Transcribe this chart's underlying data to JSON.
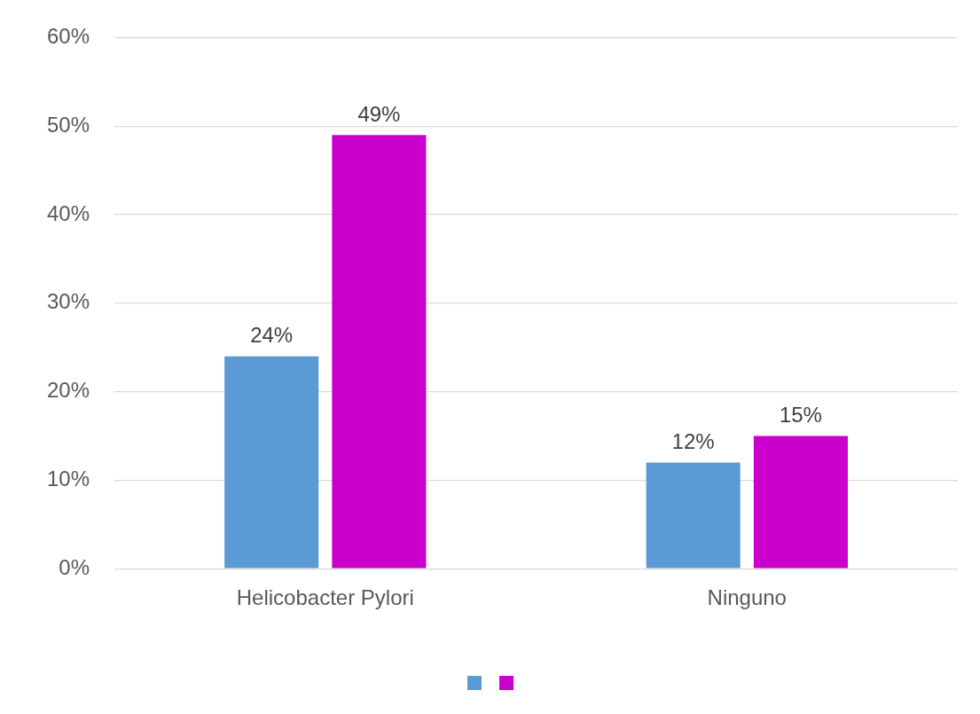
{
  "chart_data": {
    "type": "bar",
    "categories": [
      "Helicobacter Pylori",
      "Ninguno"
    ],
    "series": [
      {
        "color": "#5b9bd5",
        "values": [
          24,
          12
        ],
        "value_labels": [
          "24%",
          "12%"
        ]
      },
      {
        "color": "#cc00cc",
        "values": [
          49,
          15
        ],
        "value_labels": [
          "49%",
          "15%"
        ]
      }
    ],
    "ylim": [
      0,
      60
    ],
    "yticks": [
      {
        "value": 0,
        "label": "0%"
      },
      {
        "value": 10,
        "label": "10%"
      },
      {
        "value": 20,
        "label": "20%"
      },
      {
        "value": 30,
        "label": "30%"
      },
      {
        "value": 40,
        "label": "40%"
      },
      {
        "value": 50,
        "label": "50%"
      },
      {
        "value": 60,
        "label": "60%"
      }
    ],
    "grid": "y"
  }
}
